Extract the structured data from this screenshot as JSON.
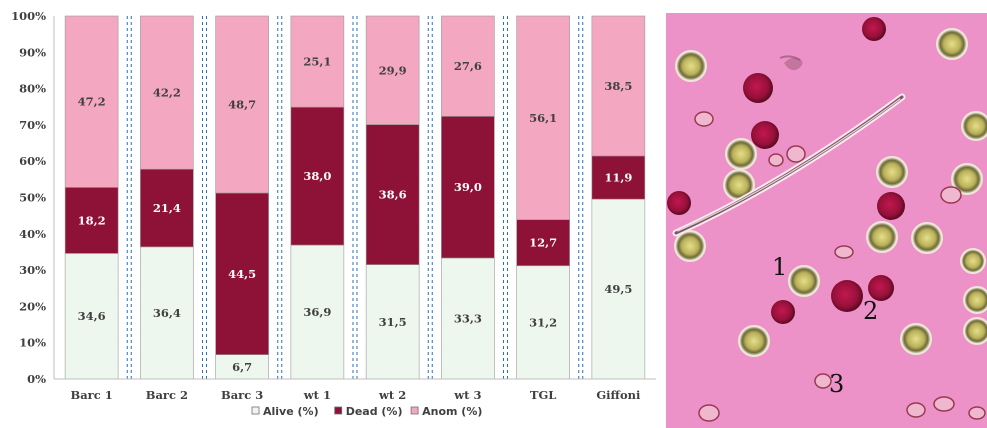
{
  "chart_data": {
    "type": "bar",
    "stacked": "percent",
    "categories": [
      "Barc 1",
      "Barc 2",
      "Barc 3",
      "wt 1",
      "wt 2",
      "wt 3",
      "TGL",
      "Giffoni"
    ],
    "series": [
      {
        "name": "Alive (%)",
        "color": "#eef7ee",
        "values": [
          34.6,
          36.4,
          6.7,
          36.9,
          31.5,
          33.3,
          31.2,
          49.5
        ],
        "labels": [
          "34,6",
          "36,4",
          "6,7",
          "36,9",
          "31,5",
          "33,3",
          "31,2",
          "49,5"
        ],
        "label_color": "#404040"
      },
      {
        "name": "Dead (%)",
        "color": "#8e1238",
        "values": [
          18.2,
          21.4,
          44.5,
          38.0,
          38.6,
          39.0,
          12.7,
          11.9
        ],
        "labels": [
          "18,2",
          "21,4",
          "44,5",
          "38,0",
          "38,6",
          "39,0",
          "12,7",
          "11,9"
        ],
        "label_color": "#ffffff"
      },
      {
        "name": "Anom (%)",
        "color": "#f4a7c0",
        "values": [
          47.2,
          42.2,
          48.7,
          25.1,
          29.9,
          27.6,
          56.1,
          38.5
        ],
        "labels": [
          "47,2",
          "42,2",
          "48,7",
          "25,1",
          "29,9",
          "27,6",
          "56,1",
          "38,5"
        ],
        "label_color": "#404040"
      }
    ],
    "ylim": [
      0,
      100
    ],
    "yticks": [
      "0%",
      "10%",
      "20%",
      "30%",
      "40%",
      "50%",
      "60%",
      "70%",
      "80%",
      "90%",
      "100%"
    ],
    "grid": false,
    "legend": "bottom",
    "separators": "dashed blue lines between categories"
  },
  "micrograph": {
    "background": "#ec92c8",
    "labels": [
      "1",
      "2",
      "3"
    ]
  }
}
